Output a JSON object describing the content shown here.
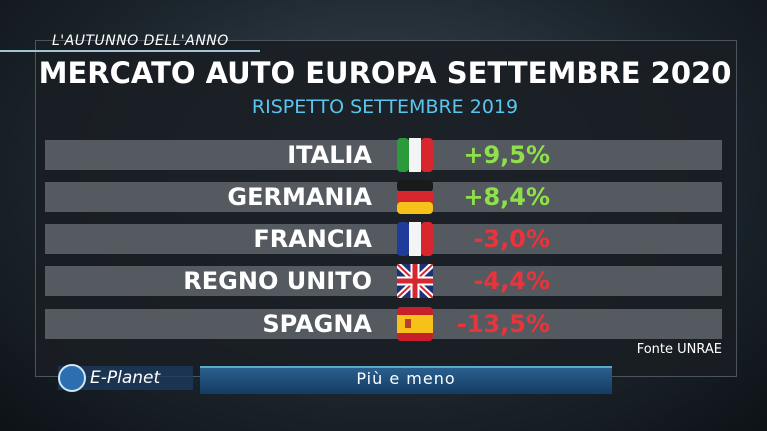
{
  "header": {
    "tag": "L'AUTUNNO DELL'ANNO",
    "title": "MERCATO AUTO EUROPA SETTEMBRE 2020",
    "subtitle": "RISPETTO SETTEMBRE 2019"
  },
  "table": {
    "rows": [
      {
        "country": "ITALIA",
        "change": "+9,5%",
        "color": "#8fe04a"
      },
      {
        "country": "GERMANIA",
        "change": "+8,4%",
        "color": "#8fe04a"
      },
      {
        "country": "FRANCIA",
        "change": "-3,0%",
        "color": "#e8343a"
      },
      {
        "country": "REGNO UNITO",
        "change": "-4,4%",
        "color": "#e8343a"
      },
      {
        "country": "SPAGNA",
        "change": "-13,5%",
        "color": "#e8343a"
      }
    ]
  },
  "source": "Fonte UNRAE",
  "footer": {
    "logo": "E-Planet",
    "program": "Più e meno"
  }
}
